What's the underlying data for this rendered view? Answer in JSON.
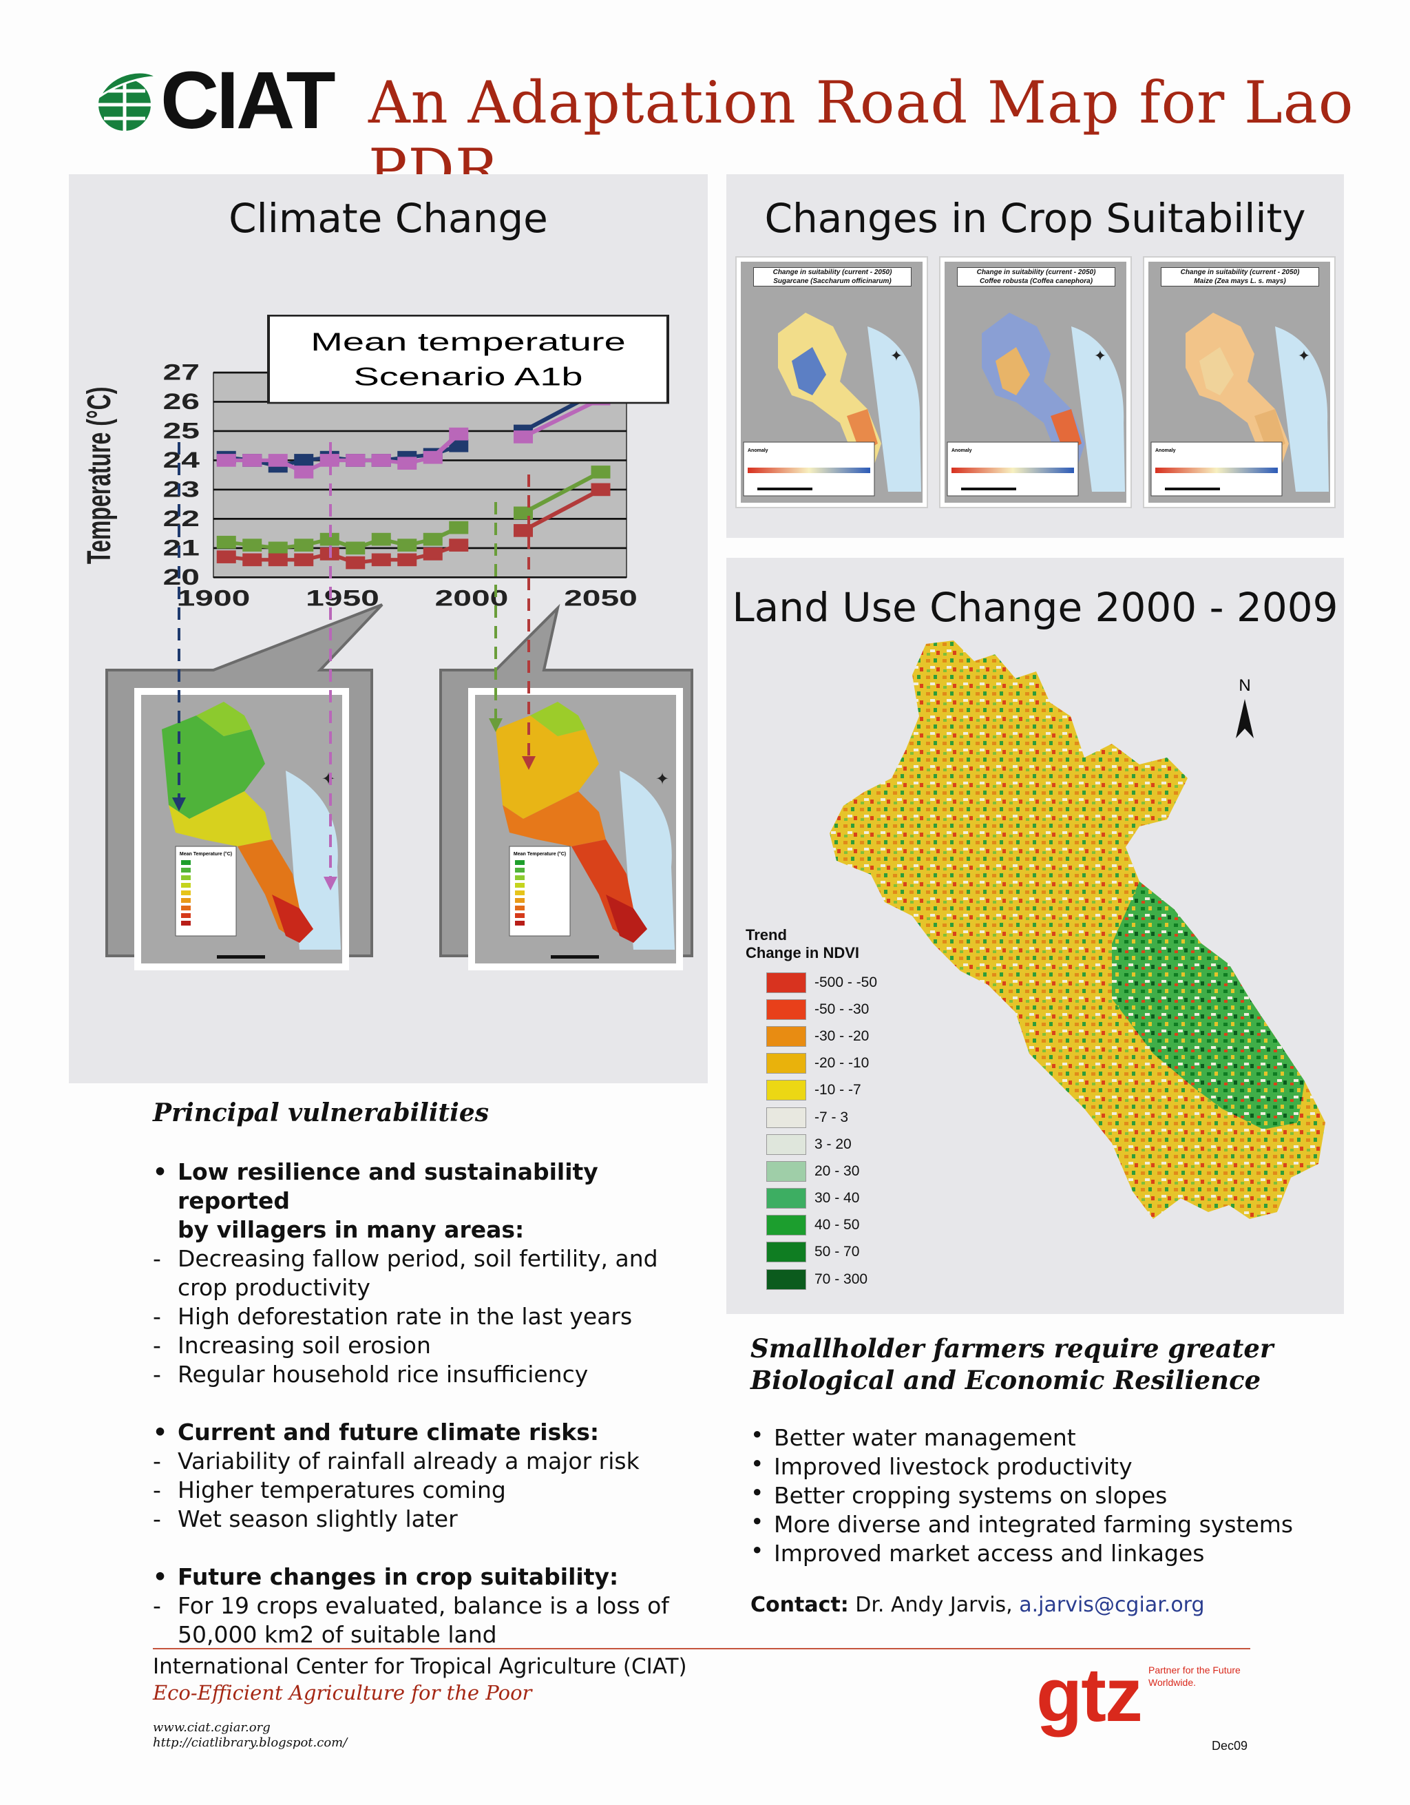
{
  "header": {
    "logo_text": "CIAT",
    "title": "An Adaptation Road Map for Lao PDR"
  },
  "climate_panel": {
    "title": "Climate Change",
    "legend_box_line1": "Mean temperature",
    "legend_box_line2": "Scenario A1b",
    "map_legend_title": "Mean Temperature (°C)"
  },
  "chart_data": {
    "type": "line",
    "title": "Mean temperature Scenario A1b",
    "xlabel": "",
    "ylabel": "Temperature (°C)",
    "xlim": [
      1900,
      2060
    ],
    "ylim": [
      20,
      27
    ],
    "x_ticks": [
      "1900",
      "1950",
      "2000",
      "2050"
    ],
    "y_ticks": [
      "20",
      "21",
      "22",
      "23",
      "24",
      "25",
      "26",
      "27"
    ],
    "grid": true,
    "series": [
      {
        "color": "#1f3a6e",
        "x": [
          1905,
          1915,
          1925,
          1935,
          1945,
          1955,
          1965,
          1975,
          1985,
          1995
        ],
        "y": [
          24.1,
          24.0,
          23.8,
          24.0,
          24.1,
          24.0,
          24.0,
          24.1,
          24.2,
          24.5
        ]
      },
      {
        "color": "#b967b9",
        "x": [
          1905,
          1915,
          1925,
          1935,
          1945,
          1955,
          1965,
          1975,
          1985,
          1995
        ],
        "y": [
          24.0,
          24.0,
          24.0,
          23.6,
          24.0,
          24.0,
          24.0,
          23.9,
          24.1,
          24.9
        ]
      },
      {
        "color": "#6a9d3a",
        "x": [
          1905,
          1915,
          1925,
          1935,
          1945,
          1955,
          1965,
          1975,
          1985,
          1995
        ],
        "y": [
          21.2,
          21.1,
          21.0,
          21.1,
          21.3,
          21.0,
          21.3,
          21.1,
          21.3,
          21.7
        ]
      },
      {
        "color": "#b23a3a",
        "x": [
          1905,
          1915,
          1925,
          1935,
          1945,
          1955,
          1965,
          1975,
          1985,
          1995
        ],
        "y": [
          20.7,
          20.6,
          20.6,
          20.6,
          20.8,
          20.5,
          20.6,
          20.6,
          20.8,
          21.1
        ]
      },
      {
        "color": "#1f3a6e",
        "x": [
          2020,
          2050
        ],
        "y": [
          25.0,
          26.4
        ]
      },
      {
        "color": "#b967b9",
        "x": [
          2020,
          2050
        ],
        "y": [
          24.8,
          26.1
        ]
      },
      {
        "color": "#6a9d3a",
        "x": [
          2020,
          2050
        ],
        "y": [
          22.2,
          23.6
        ]
      },
      {
        "color": "#b23a3a",
        "x": [
          2020,
          2050
        ],
        "y": [
          21.6,
          23.0
        ]
      }
    ]
  },
  "crop_panel": {
    "title": "Changes in Crop Suitability",
    "maps": [
      {
        "caption1": "Change in suitability (current - 2050)",
        "caption2": "Sugarcane (Saccharum officinarum)"
      },
      {
        "caption1": "Change in suitability (current - 2050)",
        "caption2": "Coffee robusta (Coffea canephora)"
      },
      {
        "caption1": "Change in suitability (current - 2050)",
        "caption2": "Maize (Zea mays L. s. mays)"
      }
    ],
    "legend_label": "Anomaly"
  },
  "landuse_panel": {
    "title": "Land Use Change 2000 - 2009",
    "north": "N",
    "legend_title_1": "Trend",
    "legend_title_2": "Change in NDVI",
    "legend": [
      {
        "label": "-500 - -50",
        "color": "#d8331f"
      },
      {
        "label": "-50 - -30",
        "color": "#e8401a"
      },
      {
        "label": "-30 - -20",
        "color": "#e88c12"
      },
      {
        "label": "-20 - -10",
        "color": "#e9b20c"
      },
      {
        "label": "-10 - -7",
        "color": "#ecd714"
      },
      {
        "label": "-7 - 3",
        "color": "#e8e8e0"
      },
      {
        "label": "3 - 20",
        "color": "#dfe6dc"
      },
      {
        "label": "20 - 30",
        "color": "#9fceA8"
      },
      {
        "label": "30 - 40",
        "color": "#3dae62"
      },
      {
        "label": "40 - 50",
        "color": "#1c9e2e"
      },
      {
        "label": "50 - 70",
        "color": "#0f7d22"
      },
      {
        "label": "70 - 300",
        "color": "#0b5b1d"
      }
    ]
  },
  "vulnerabilities": {
    "heading": "Principal vulnerabilities",
    "groups": [
      {
        "head1": "Low resilience and sustainability reported",
        "head2": "by villagers in many areas:",
        "items": [
          "Decreasing  fallow period, soil fertility, and",
          "crop productivity",
          "High deforestation rate in the last years",
          "Increasing soil erosion",
          "Regular household rice insufficiency"
        ]
      },
      {
        "head1": "Current and future climate risks:",
        "items": [
          "Variability of rainfall already a major risk",
          "Higher temperatures coming",
          "Wet season slightly later"
        ]
      },
      {
        "head1": "Future changes in crop suitability:",
        "items": [
          "For 19 crops evaluated, balance is a loss of",
          "50,000 km2 of suitable land"
        ]
      }
    ]
  },
  "resilience": {
    "heading1": "Smallholder farmers require greater",
    "heading2": "Biological and Economic Resilience",
    "items": [
      "Better water management",
      "Improved livestock productivity",
      "Better cropping systems on slopes",
      "More diverse and integrated farming systems",
      "Improved market access and linkages"
    ],
    "contact_label": "Contact:",
    "contact_name": "Dr. Andy Jarvis,",
    "contact_email": "a.jarvis@cgiar.org"
  },
  "footer": {
    "org": "International Center for Tropical Agriculture (CIAT)",
    "slogan": "Eco-Efficient Agriculture for the Poor",
    "url1": "www.ciat.cgiar.org",
    "url2": "http://ciatlibrary.blogspot.com/",
    "partner_logo": "gtz",
    "partner_tag1": "Partner for the Future",
    "partner_tag2": "Worldwide.",
    "date": "Dec09"
  }
}
